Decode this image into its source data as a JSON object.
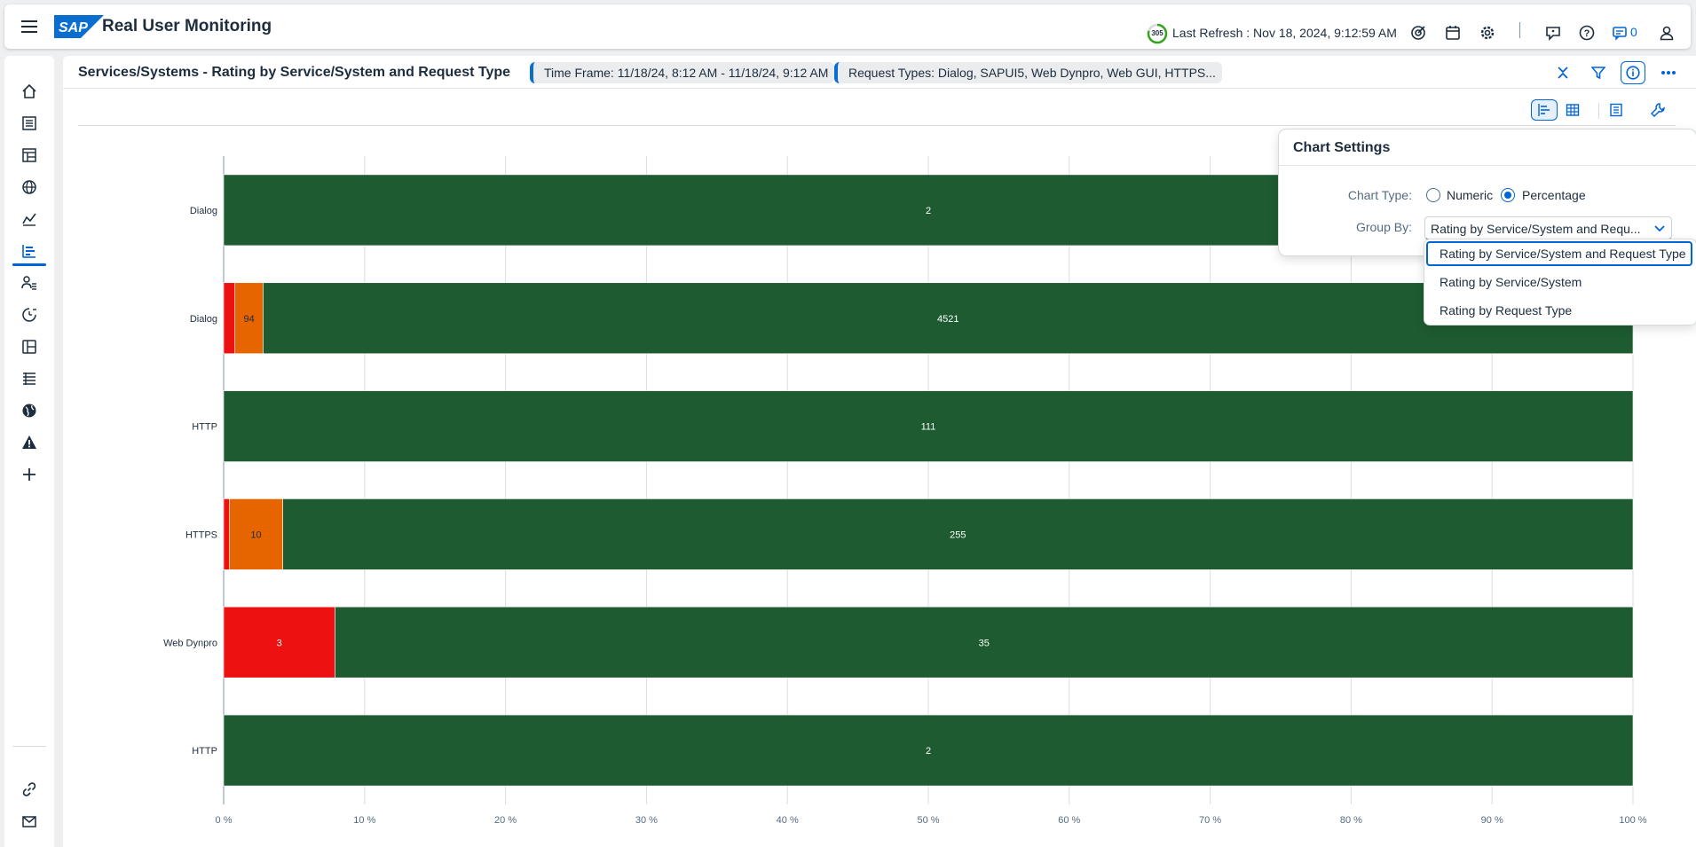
{
  "shell": {
    "logo_text": "SAP",
    "app_title": "Real User Monitoring",
    "refresh_countdown": "305",
    "refresh_countdown_fraction": 0.8,
    "last_refresh": "Last Refresh : Nov 18, 2024, 9:12:59 AM",
    "notification_count": "0",
    "icons": [
      "menu-icon",
      "target-icon",
      "calendar-icon",
      "settings-icon",
      "feedback-icon",
      "help-icon",
      "notifications-icon",
      "user-icon"
    ]
  },
  "sidebar": {
    "items": [
      {
        "icon": "home-icon",
        "active": false
      },
      {
        "icon": "list-icon",
        "active": false
      },
      {
        "icon": "tree-table-icon",
        "active": false
      },
      {
        "icon": "web-analytics-icon",
        "active": false
      },
      {
        "icon": "line-chart-icon",
        "active": false
      },
      {
        "icon": "bar-chart-icon",
        "active": true
      },
      {
        "icon": "user-list-icon",
        "active": false
      },
      {
        "icon": "history-chart-icon",
        "active": false
      },
      {
        "icon": "table-view-icon",
        "active": false
      },
      {
        "icon": "timeline-icon",
        "active": false
      },
      {
        "icon": "globe-icon",
        "active": false
      },
      {
        "icon": "alert-icon",
        "active": false
      },
      {
        "icon": "add-icon",
        "active": false
      }
    ],
    "bottom_items": [
      {
        "icon": "link-icon"
      },
      {
        "icon": "email-icon"
      }
    ]
  },
  "page": {
    "title": "Services/Systems - Rating by Service/System and Request Type",
    "filters": [
      "Time Frame: 11/18/24, 8:12 AM - 11/18/24, 9:12 AM",
      "Request Types: Dialog, SAPUI5, Web Dynpro, Web GUI, HTTPS..."
    ]
  },
  "chart_settings": {
    "title": "Chart Settings",
    "chart_type_label": "Chart Type:",
    "chart_type_options": [
      "Numeric",
      "Percentage"
    ],
    "chart_type_selected": "Percentage",
    "group_by_label": "Group By:",
    "group_by_value": "Rating by Service/System and Requ...",
    "group_by_options": [
      "Rating by Service/System and Request Type",
      "Rating by Service/System",
      "Rating by Request Type"
    ],
    "group_by_focused": 0
  },
  "colors": {
    "red": "#ee1111",
    "orange": "#e76500",
    "green": "#1e5b30",
    "accent": "#0064d9"
  },
  "chart_data": {
    "type": "bar",
    "orientation": "horizontal",
    "stacked": true,
    "percent": true,
    "categories": [
      "Dialog",
      "Dialog",
      "HTTP",
      "HTTPS",
      "Web Dynpro",
      "HTTP"
    ],
    "series": [
      {
        "color": "#ee1111",
        "values": [
          0,
          0.8,
          0,
          0.4,
          7.9,
          0
        ],
        "labels": [
          "",
          "",
          "",
          "",
          "3",
          ""
        ]
      },
      {
        "color": "#e76500",
        "values": [
          0,
          2.0,
          0,
          3.8,
          0,
          0
        ],
        "labels": [
          "",
          "94",
          "",
          "10",
          "",
          ""
        ]
      },
      {
        "color": "#1e5b30",
        "values": [
          100,
          97.2,
          100,
          95.8,
          92.1,
          100
        ],
        "labels": [
          "2",
          "4521",
          "111",
          "255",
          "35",
          "2"
        ]
      }
    ],
    "xlim": [
      0,
      100
    ],
    "x_ticks": [
      "0 %",
      "10 %",
      "20 %",
      "30 %",
      "40 %",
      "50 %",
      "60 %",
      "70 %",
      "80 %",
      "90 %",
      "100 %"
    ],
    "grid": true
  }
}
